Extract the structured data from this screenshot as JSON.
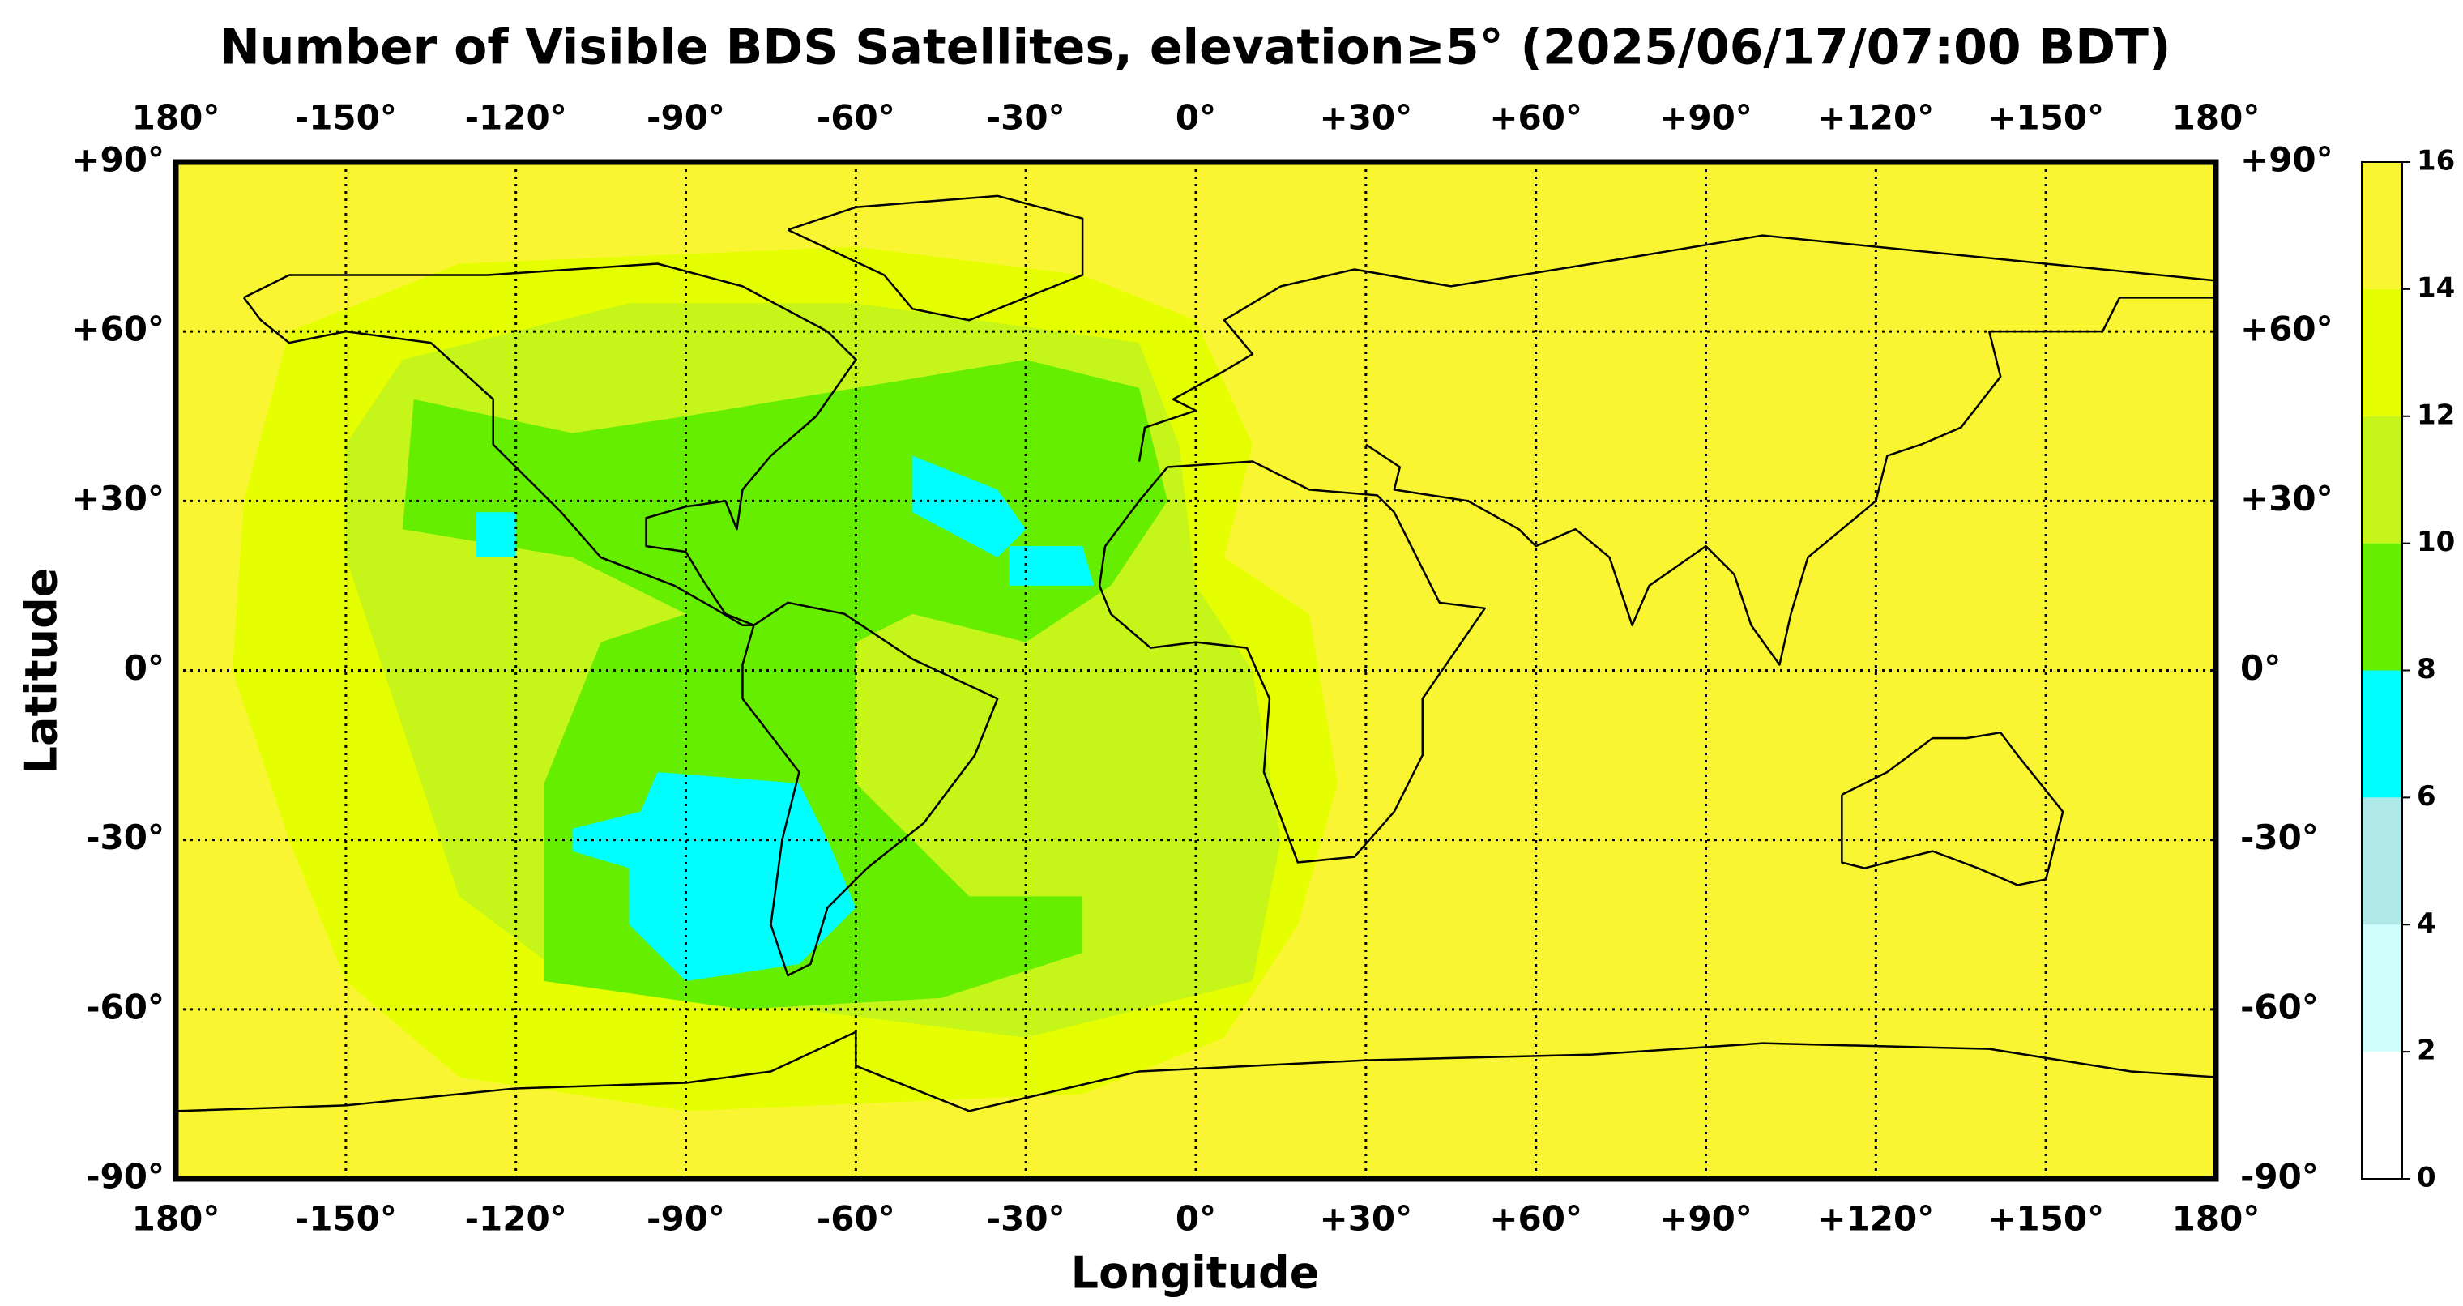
{
  "chart_data": {
    "type": "map",
    "title": "Number of Visible BDS Satellites, elevation≥5° (2025/06/17/07:00 BDT)",
    "xlabel": "Longitude",
    "ylabel": "Latitude",
    "xlim": [
      -180,
      180
    ],
    "ylim": [
      -90,
      90
    ],
    "xticks": [
      {
        "value": -180,
        "label": "180°"
      },
      {
        "value": -150,
        "label": "-150°"
      },
      {
        "value": -120,
        "label": "-120°"
      },
      {
        "value": -90,
        "label": "-90°"
      },
      {
        "value": -60,
        "label": "-60°"
      },
      {
        "value": -30,
        "label": "-30°"
      },
      {
        "value": 0,
        "label": "0°"
      },
      {
        "value": 30,
        "label": "+30°"
      },
      {
        "value": 60,
        "label": "+60°"
      },
      {
        "value": 90,
        "label": "+90°"
      },
      {
        "value": 120,
        "label": "+120°"
      },
      {
        "value": 150,
        "label": "+150°"
      },
      {
        "value": 180,
        "label": "180°"
      }
    ],
    "yticks": [
      {
        "value": -90,
        "label": "-90°"
      },
      {
        "value": -60,
        "label": "-60°"
      },
      {
        "value": -30,
        "label": "-30°"
      },
      {
        "value": 0,
        "label": "0°"
      },
      {
        "value": 30,
        "label": "+30°"
      },
      {
        "value": 60,
        "label": "+60°"
      },
      {
        "value": 90,
        "label": "+90°"
      }
    ],
    "grid": true,
    "levels": [
      0,
      2,
      4,
      6,
      8,
      10,
      12,
      14,
      16
    ],
    "colors": [
      "#ffffff",
      "#d2fdfd",
      "#b0e8e8",
      "#00ffff",
      "#66ee00",
      "#c6f51a",
      "#e6ff00",
      "#faf532"
    ],
    "background_value": 15,
    "regions": [
      {
        "value": 13,
        "polygon": [
          [
            -130,
            72
          ],
          [
            -60,
            75
          ],
          [
            -20,
            70
          ],
          [
            0,
            62
          ],
          [
            10,
            40
          ],
          [
            5,
            20
          ],
          [
            20,
            10
          ],
          [
            25,
            -20
          ],
          [
            18,
            -45
          ],
          [
            5,
            -65
          ],
          [
            -20,
            -75
          ],
          [
            -90,
            -78
          ],
          [
            -130,
            -72
          ],
          [
            -150,
            -55
          ],
          [
            -160,
            -30
          ],
          [
            -170,
            0
          ],
          [
            -168,
            30
          ],
          [
            -160,
            60
          ]
        ]
      },
      {
        "value": 11,
        "polygon": [
          [
            -140,
            55
          ],
          [
            -100,
            65
          ],
          [
            -60,
            65
          ],
          [
            -10,
            58
          ],
          [
            -3,
            40
          ],
          [
            0,
            15
          ],
          [
            10,
            0
          ],
          [
            15,
            -30
          ],
          [
            10,
            -55
          ],
          [
            -30,
            -65
          ],
          [
            -70,
            -60
          ],
          [
            -110,
            -55
          ],
          [
            -130,
            -40
          ],
          [
            -140,
            -10
          ],
          [
            -150,
            20
          ],
          [
            -150,
            40
          ]
        ]
      },
      {
        "value": 9,
        "polygon": [
          [
            -138,
            48
          ],
          [
            -110,
            42
          ],
          [
            -90,
            45
          ],
          [
            -60,
            50
          ],
          [
            -30,
            55
          ],
          [
            -10,
            50
          ],
          [
            -5,
            30
          ],
          [
            -15,
            15
          ],
          [
            -30,
            5
          ],
          [
            -50,
            10
          ],
          [
            -60,
            5
          ],
          [
            -60,
            -20
          ],
          [
            -50,
            -30
          ],
          [
            -40,
            -40
          ],
          [
            -20,
            -40
          ],
          [
            -20,
            -50
          ],
          [
            -45,
            -58
          ],
          [
            -80,
            -60
          ],
          [
            -115,
            -55
          ],
          [
            -115,
            -20
          ],
          [
            -105,
            5
          ],
          [
            -90,
            10
          ],
          [
            -110,
            20
          ],
          [
            -140,
            25
          ]
        ]
      },
      {
        "value": 7,
        "polygon": [
          [
            -50,
            38
          ],
          [
            -35,
            32
          ],
          [
            -30,
            25
          ],
          [
            -35,
            20
          ],
          [
            -50,
            28
          ]
        ]
      },
      {
        "value": 7,
        "polygon": [
          [
            -33,
            22
          ],
          [
            -20,
            22
          ],
          [
            -18,
            15
          ],
          [
            -33,
            15
          ]
        ]
      },
      {
        "value": 7,
        "polygon": [
          [
            -95,
            -18
          ],
          [
            -70,
            -20
          ],
          [
            -65,
            -30
          ],
          [
            -60,
            -42
          ],
          [
            -70,
            -52
          ],
          [
            -90,
            -55
          ],
          [
            -100,
            -45
          ],
          [
            -100,
            -35
          ],
          [
            -110,
            -32
          ],
          [
            -110,
            -28
          ],
          [
            -98,
            -25
          ]
        ]
      },
      {
        "value": 7,
        "polygon": [
          [
            -127,
            28
          ],
          [
            -120,
            28
          ],
          [
            -120,
            20
          ],
          [
            -127,
            20
          ]
        ]
      }
    ]
  }
}
